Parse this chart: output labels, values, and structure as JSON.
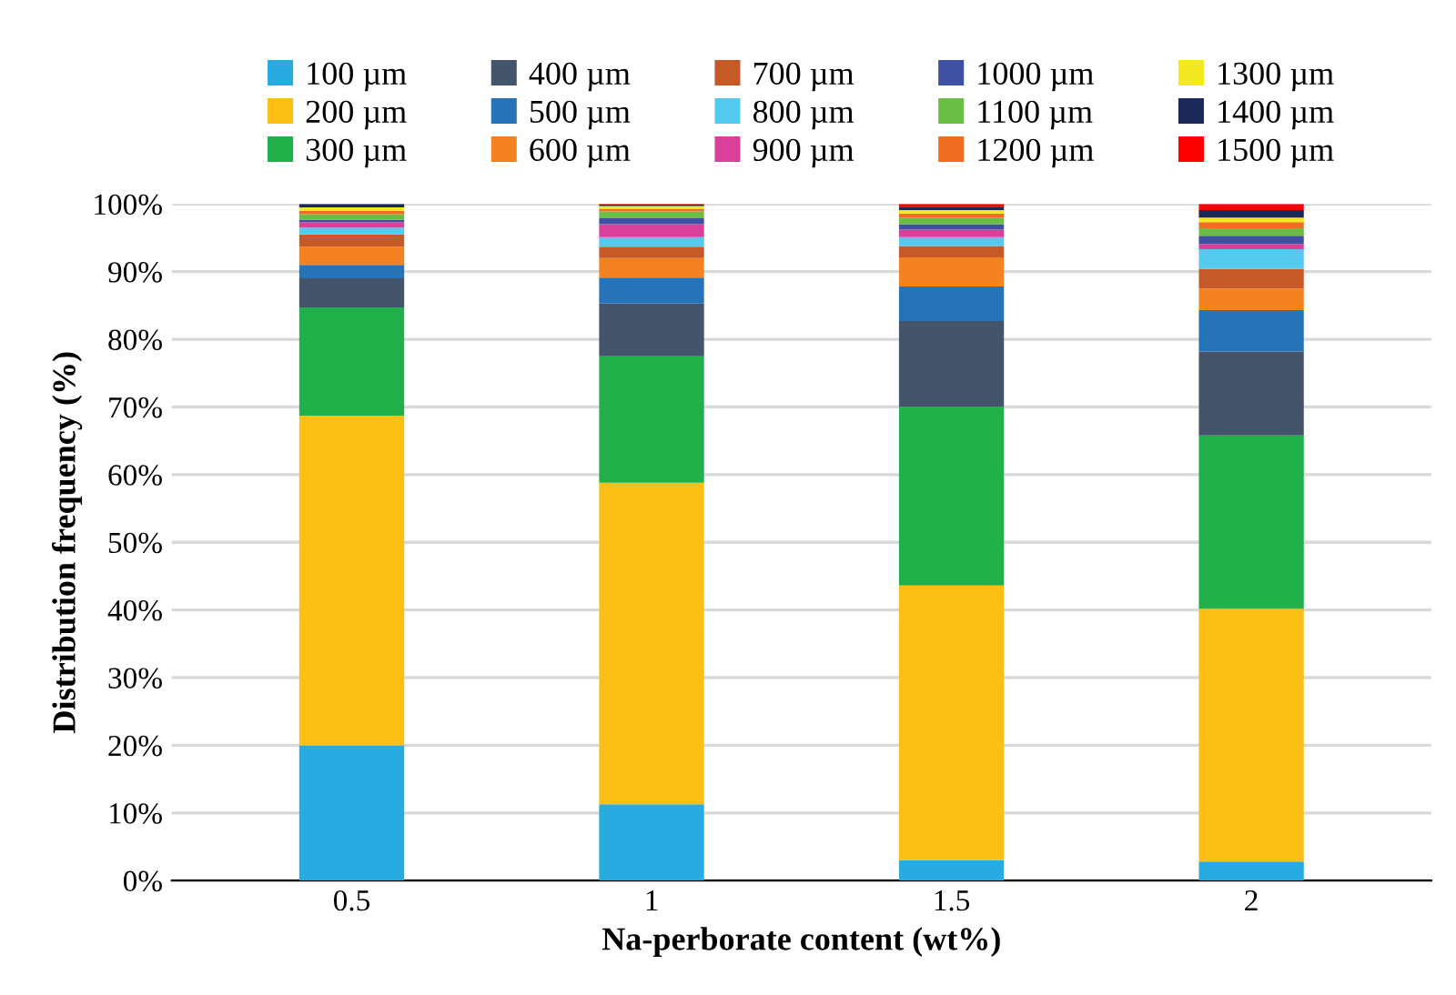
{
  "chart_data": {
    "type": "bar",
    "stacked": true,
    "xlabel": "Na-perborate content (wt%)",
    "ylabel": "Distribution frequency (%)",
    "categories": [
      "0.5",
      "1",
      "1.5",
      "2"
    ],
    "series": [
      {
        "name": "100 µm",
        "color": "#29abe2",
        "values": [
          20,
          11.3,
          3.0,
          2.8
        ]
      },
      {
        "name": "200 µm",
        "color": "#fbbf15",
        "values": [
          48.7,
          47.5,
          40.6,
          37.4
        ]
      },
      {
        "name": "300 µm",
        "color": "#22b04b",
        "values": [
          16,
          18.7,
          26.4,
          25.6
        ]
      },
      {
        "name": "400 µm",
        "color": "#44546a",
        "values": [
          4.3,
          7.8,
          12.7,
          12.4
        ]
      },
      {
        "name": "500 µm",
        "color": "#2673b8",
        "values": [
          2.0,
          3.8,
          5.1,
          6.1
        ]
      },
      {
        "name": "600 µm",
        "color": "#f58220",
        "values": [
          2.7,
          2.9,
          4.3,
          3.2
        ]
      },
      {
        "name": "700 µm",
        "color": "#c55a28",
        "values": [
          1.8,
          1.7,
          1.7,
          2.9
        ]
      },
      {
        "name": "800 µm",
        "color": "#56c9ef",
        "values": [
          1.0,
          1.4,
          1.3,
          2.9
        ]
      },
      {
        "name": "900 µm",
        "color": "#d9409a",
        "values": [
          0.8,
          1.9,
          1.1,
          0.8
        ]
      },
      {
        "name": "1000 µm",
        "color": "#3f51a3",
        "values": [
          0.4,
          0.9,
          0.8,
          1.2
        ]
      },
      {
        "name": "1100 µm",
        "color": "#6cbd45",
        "values": [
          0.8,
          1.0,
          1.0,
          1.1
        ]
      },
      {
        "name": "1200 µm",
        "color": "#f06d22",
        "values": [
          0.5,
          0.4,
          0.6,
          0.9
        ]
      },
      {
        "name": "1300 µm",
        "color": "#f2e81f",
        "values": [
          0.5,
          0.4,
          0.5,
          0.7
        ]
      },
      {
        "name": "1400 µm",
        "color": "#1b2858",
        "values": [
          0.5,
          0.2,
          0.5,
          1.1
        ]
      },
      {
        "name": "1500 µm",
        "color": "#ff0000",
        "values": [
          0.0,
          0.1,
          0.4,
          0.9
        ]
      }
    ],
    "ylim": [
      0,
      100
    ],
    "yticks": [
      {
        "value": 0,
        "label": "0%"
      },
      {
        "value": 10,
        "label": "10%"
      },
      {
        "value": 20,
        "label": "20%"
      },
      {
        "value": 30,
        "label": "30%"
      },
      {
        "value": 40,
        "label": "40%"
      },
      {
        "value": 50,
        "label": "50%"
      },
      {
        "value": 60,
        "label": "60%"
      },
      {
        "value": 70,
        "label": "70%"
      },
      {
        "value": 80,
        "label": "80%"
      },
      {
        "value": 90,
        "label": "90%"
      },
      {
        "value": 100,
        "label": "100%"
      }
    ],
    "grid": "y",
    "legend": "top"
  }
}
